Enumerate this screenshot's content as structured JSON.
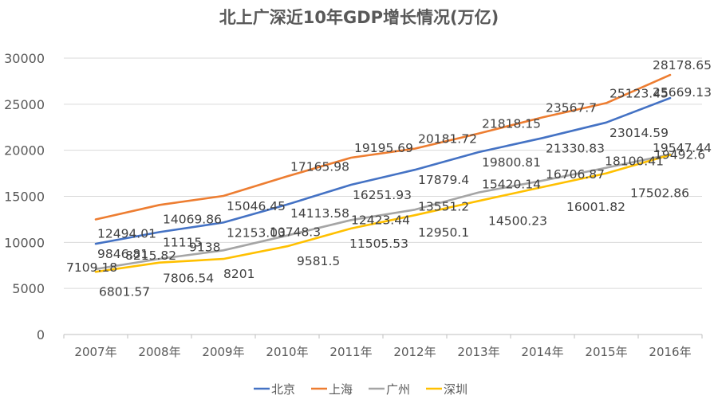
{
  "chart_data": {
    "type": "line",
    "title": "北上广深近10年GDP增长情况(万亿)",
    "categories": [
      "2007年",
      "2008年",
      "2009年",
      "2010年",
      "2011年",
      "2012年",
      "2013年",
      "2014年",
      "2015年",
      "2016年"
    ],
    "ylim": [
      0,
      30000
    ],
    "yticks": [
      "0",
      "5000",
      "10000",
      "15000",
      "20000",
      "25000",
      "30000"
    ],
    "grid": true,
    "legend_position": "bottom",
    "series": [
      {
        "name": "北京",
        "color": "#4472C4",
        "values": [
          9846.81,
          11115,
          12153.03,
          14113.58,
          16251.93,
          17879.4,
          19800.81,
          21330.83,
          23014.59,
          25669.13
        ],
        "labels": [
          "9846.81",
          "11115",
          "12153.03",
          "14113.58",
          "16251.93",
          "17879.4",
          "19800.81",
          "21330.83",
          "23014.59",
          "25669.13"
        ]
      },
      {
        "name": "上海",
        "color": "#ED7D31",
        "values": [
          12494.01,
          14069.86,
          15046.45,
          17165.98,
          19195.69,
          20181.72,
          21818.15,
          23567.7,
          25123.45,
          28178.65
        ],
        "labels": [
          "12494.01",
          "14069.86",
          "15046.45",
          "17165.98",
          "19195.69",
          "20181.72",
          "21818.15",
          "23567.7",
          "25123.45",
          "28178.65"
        ]
      },
      {
        "name": "广州",
        "color": "#A5A5A5",
        "values": [
          7109.18,
          8215.82,
          9138,
          10748.3,
          12423.44,
          13551.2,
          15420.14,
          16706.87,
          18100.41,
          19547.44
        ],
        "labels": [
          "7109.18",
          "8215.82",
          "9138",
          "10748.3",
          "12423.44",
          "13551.2",
          "15420.14",
          "16706.87",
          "18100.41",
          "19547.44"
        ]
      },
      {
        "name": "深圳",
        "color": "#FFC000",
        "values": [
          6801.57,
          7806.54,
          8201,
          9581.5,
          11505.53,
          12950.1,
          14500.23,
          16001.82,
          17502.86,
          19492.6
        ],
        "labels": [
          "6801.57",
          "7806.54",
          "8201",
          "9581.5",
          "11505.53",
          "12950.1",
          "14500.23",
          "16001.82",
          "17502.86",
          "19492.6"
        ]
      }
    ]
  }
}
